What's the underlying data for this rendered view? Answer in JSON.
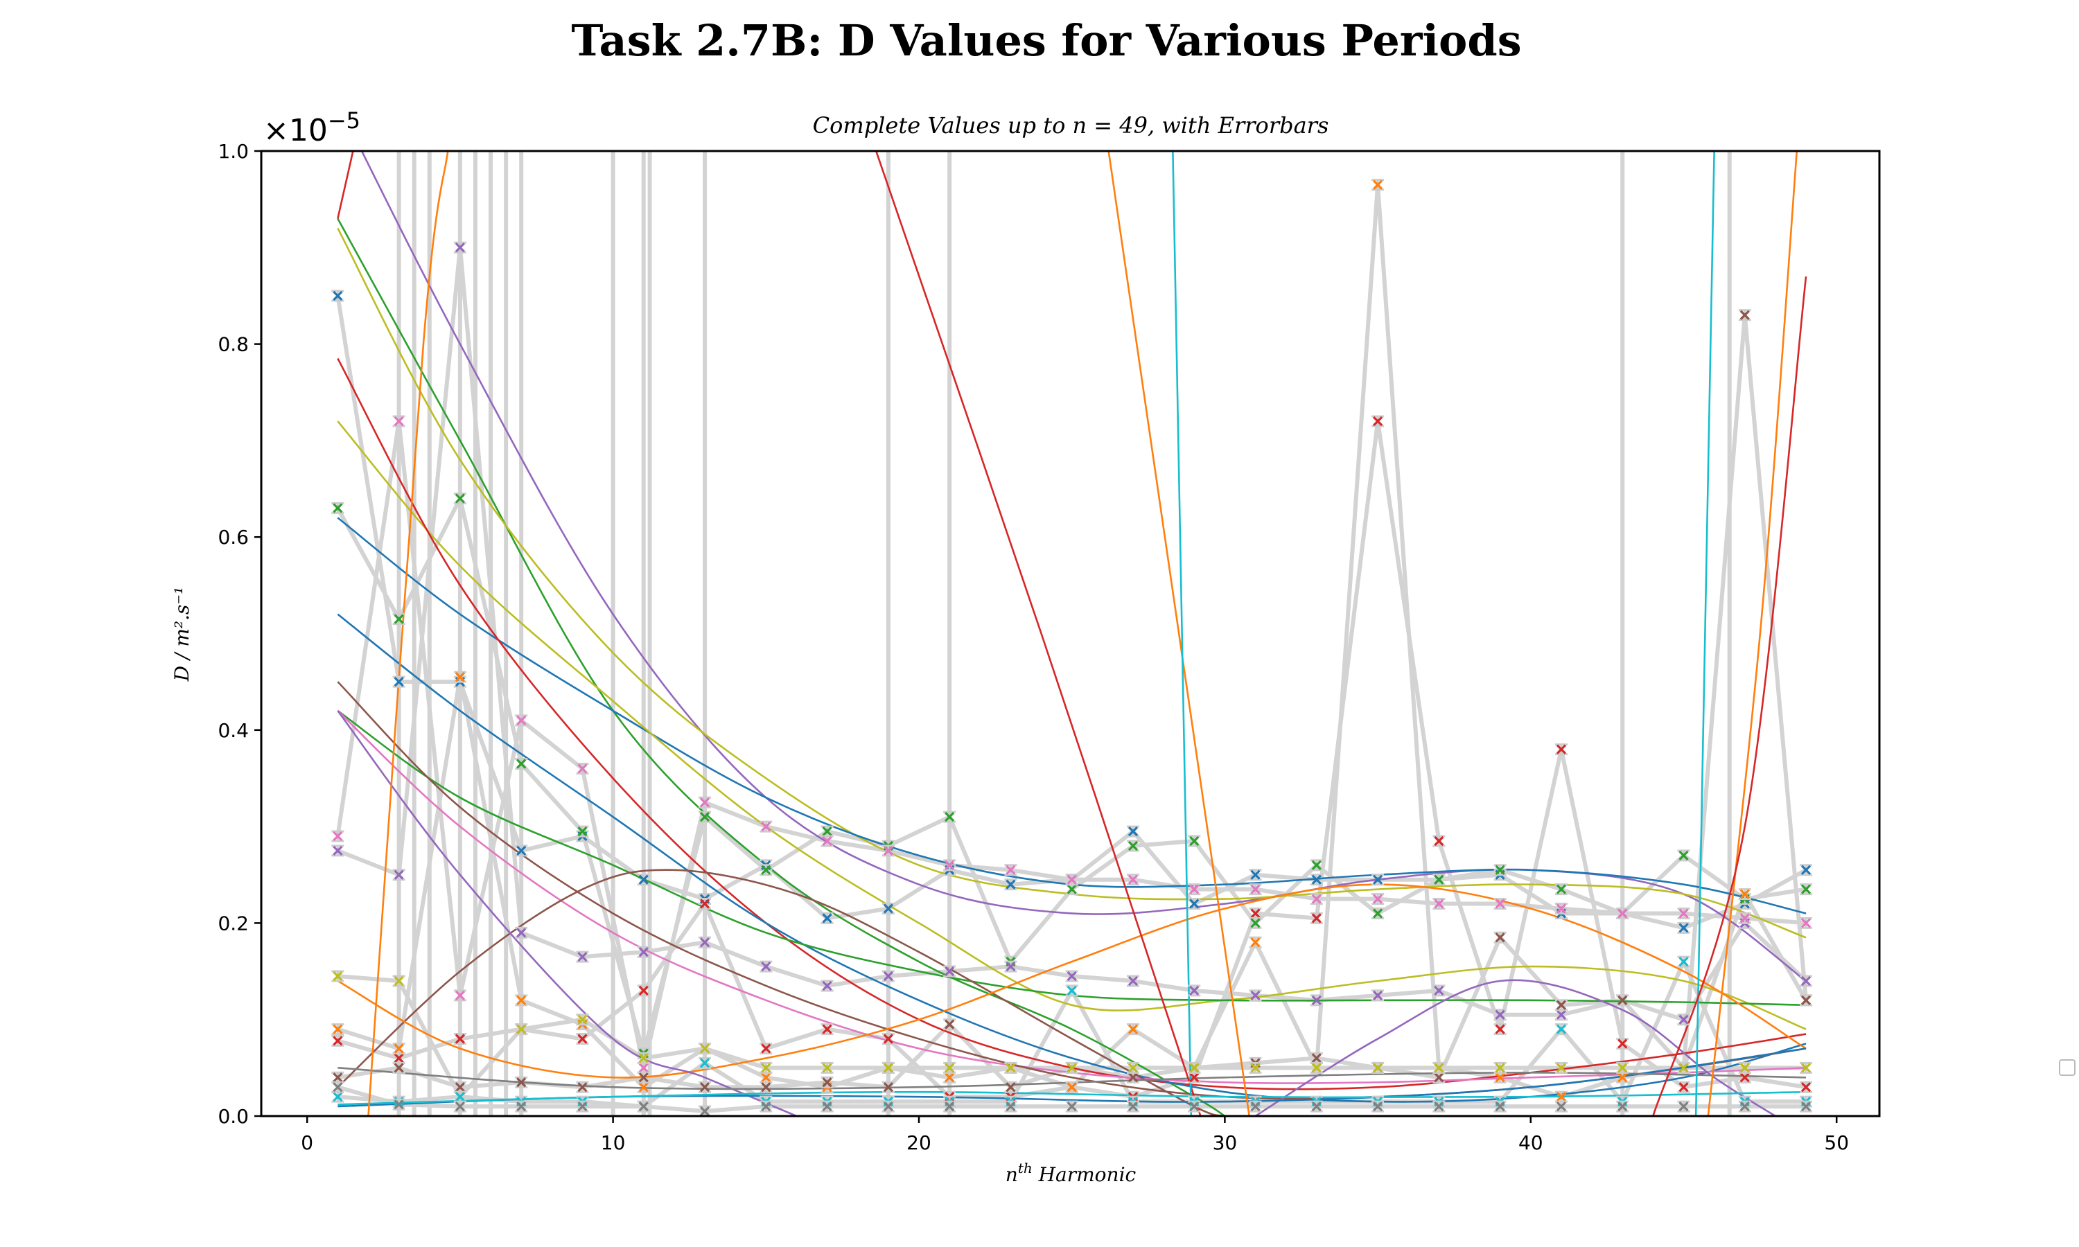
{
  "chart_data": {
    "type": "scatter",
    "title": "Task 2.7B: D Values for Various Periods",
    "subtitle": "Complete Values up to n = 49, with Errorbars",
    "xlabel_base": "n",
    "xlabel_sup": "th",
    "xlabel_rest": " Harmonic",
    "ylabel": "D / m².s⁻¹",
    "y_multiplier_base": "×10",
    "y_multiplier_exp": "−5",
    "xlim": [
      -1.5,
      51.4
    ],
    "ylim": [
      0,
      1.0
    ],
    "x_ticks": [
      0,
      10,
      20,
      30,
      40,
      50
    ],
    "x_tick_labels": [
      "0",
      "10",
      "20",
      "30",
      "40",
      "50"
    ],
    "y_ticks": [
      0,
      0.2,
      0.4,
      0.6,
      0.8,
      1.0
    ],
    "y_tick_labels": [
      "0.0",
      "0.2",
      "0.4",
      "0.6",
      "0.8",
      "1.0"
    ],
    "grid": false,
    "legend": "right (empty)",
    "x": [
      1,
      3,
      5,
      7,
      9,
      11,
      13,
      15,
      17,
      19,
      21,
      23,
      25,
      27,
      29,
      31,
      33,
      35,
      37,
      39,
      41,
      43,
      45,
      47,
      49
    ],
    "palette": [
      "#1f77b4",
      "#ff7f0e",
      "#2ca02c",
      "#d62728",
      "#9467bd",
      "#8c564b",
      "#e377c2",
      "#7f7f7f",
      "#bcbd22",
      "#17becf"
    ],
    "errorbar_color": "#cccccc",
    "connector_color": "#d3d3d3",
    "series": [
      {
        "color": "#1f77b4",
        "values": [
          0.85,
          0.45,
          0.45,
          0.275,
          0.29,
          0.245,
          0.225,
          0.26,
          0.205,
          0.215,
          0.255,
          0.24,
          0.245,
          0.295,
          0.22,
          0.25,
          0.245,
          0.245,
          0.245,
          0.25,
          0.21,
          0.21,
          0.195,
          0.22,
          0.255
        ]
      },
      {
        "color": "#d62728",
        "values": [
          0.078,
          0.06,
          0.08,
          0.09,
          0.08,
          0.13,
          0.22,
          0.07,
          0.09,
          0.08,
          0.02,
          0.02,
          0.03,
          0.02,
          0.04,
          0.21,
          0.205,
          0.72,
          0.285,
          0.09,
          0.38,
          0.075,
          0.03,
          0.04,
          0.03
        ]
      },
      {
        "color": "#2ca02c",
        "values": [
          0.63,
          0.515,
          0.64,
          0.365,
          0.295,
          0.065,
          0.31,
          0.255,
          0.295,
          0.28,
          0.31,
          0.16,
          0.235,
          0.28,
          0.285,
          0.2,
          0.26,
          0.21,
          0.245,
          0.255,
          0.235,
          0.21,
          0.27,
          0.225,
          0.235
        ]
      },
      {
        "color": "#9467bd",
        "values": [
          0.275,
          0.25,
          0.9,
          0.19,
          0.165,
          0.17,
          0.18,
          0.155,
          0.135,
          0.145,
          0.15,
          0.155,
          0.145,
          0.14,
          0.13,
          0.125,
          0.12,
          0.125,
          0.13,
          0.105,
          0.105,
          0.12,
          0.1,
          0.2,
          0.14
        ]
      },
      {
        "color": "#e377c2",
        "values": [
          0.29,
          0.72,
          0.125,
          0.41,
          0.36,
          0.05,
          0.325,
          0.3,
          0.285,
          0.275,
          0.26,
          0.255,
          0.245,
          0.245,
          0.235,
          0.235,
          0.225,
          0.225,
          0.22,
          0.22,
          0.215,
          0.21,
          0.21,
          0.205,
          0.2
        ]
      },
      {
        "color": "#ff7f0e",
        "values": [
          0.09,
          0.07,
          0.455,
          0.12,
          0.095,
          0.03,
          0.07,
          0.04,
          0.03,
          0.05,
          0.04,
          0.05,
          0.03,
          0.09,
          0.05,
          0.18,
          0.05,
          0.965,
          0.05,
          0.04,
          0.02,
          0.04,
          0.05,
          0.23,
          0.12
        ]
      },
      {
        "color": "#8c564b",
        "values": [
          0.04,
          0.05,
          0.03,
          0.035,
          0.03,
          0.04,
          0.03,
          0.03,
          0.035,
          0.03,
          0.095,
          0.03,
          0.05,
          0.04,
          0.05,
          0.055,
          0.06,
          0.05,
          0.04,
          0.185,
          0.115,
          0.12,
          0.05,
          0.83,
          0.12
        ]
      },
      {
        "color": "#bcbd22",
        "values": [
          0.145,
          0.14,
          0.02,
          0.09,
          0.1,
          0.06,
          0.07,
          0.05,
          0.05,
          0.05,
          0.05,
          0.05,
          0.05,
          0.05,
          0.05,
          0.05,
          0.05,
          0.05,
          0.05,
          0.05,
          0.05,
          0.05,
          0.05,
          0.05,
          0.05
        ]
      },
      {
        "color": "#17becf",
        "values": [
          0.02,
          0.015,
          0.02,
          0.015,
          0.015,
          0.01,
          0.055,
          0.015,
          0.015,
          0.015,
          0.015,
          0.015,
          0.13,
          0.015,
          0.015,
          0.015,
          0.015,
          0.015,
          0.015,
          0.015,
          0.09,
          0.015,
          0.16,
          0.015,
          0.015
        ]
      },
      {
        "color": "#7f7f7f",
        "values": [
          0.03,
          0.012,
          0.01,
          0.01,
          0.01,
          0.01,
          0.005,
          0.01,
          0.01,
          0.01,
          0.01,
          0.01,
          0.01,
          0.01,
          0.01,
          0.01,
          0.01,
          0.01,
          0.01,
          0.01,
          0.01,
          0.01,
          0.01,
          0.01,
          0.01
        ]
      }
    ],
    "fit_curves": [
      {
        "color": "#9467bd",
        "points": [
          [
            1,
            1.05
          ],
          [
            5,
            0.8
          ],
          [
            10,
            0.52
          ],
          [
            15,
            0.33
          ],
          [
            20,
            0.24
          ],
          [
            25,
            0.21
          ],
          [
            30,
            0.22
          ],
          [
            35,
            0.245
          ],
          [
            40,
            0.255
          ],
          [
            45,
            0.23
          ],
          [
            49,
            0.14
          ]
        ]
      },
      {
        "color": "#2ca02c",
        "points": [
          [
            1,
            0.93
          ],
          [
            5,
            0.7
          ],
          [
            10,
            0.42
          ],
          [
            15,
            0.26
          ],
          [
            20,
            0.16
          ],
          [
            25,
            0.09
          ],
          [
            29,
            0.02
          ],
          [
            30,
            0.0
          ]
        ]
      },
      {
        "color": "#bcbd22",
        "points": [
          [
            1,
            0.92
          ],
          [
            5,
            0.68
          ],
          [
            10,
            0.48
          ],
          [
            15,
            0.35
          ],
          [
            20,
            0.26
          ],
          [
            25,
            0.23
          ],
          [
            30,
            0.225
          ],
          [
            35,
            0.235
          ],
          [
            40,
            0.24
          ],
          [
            45,
            0.23
          ],
          [
            49,
            0.185
          ]
        ]
      },
      {
        "color": "#1f77b4",
        "points": [
          [
            1,
            0.62
          ],
          [
            5,
            0.52
          ],
          [
            10,
            0.42
          ],
          [
            15,
            0.33
          ],
          [
            20,
            0.27
          ],
          [
            25,
            0.24
          ],
          [
            30,
            0.24
          ],
          [
            35,
            0.25
          ],
          [
            40,
            0.255
          ],
          [
            45,
            0.24
          ],
          [
            49,
            0.21
          ]
        ]
      },
      {
        "color": "#bcbd22",
        "points": [
          [
            1,
            0.72
          ],
          [
            5,
            0.57
          ],
          [
            10,
            0.43
          ],
          [
            15,
            0.3
          ],
          [
            20,
            0.2
          ],
          [
            25,
            0.115
          ],
          [
            30,
            0.12
          ],
          [
            35,
            0.14
          ],
          [
            40,
            0.155
          ],
          [
            45,
            0.14
          ],
          [
            49,
            0.09
          ]
        ]
      },
      {
        "color": "#d62728",
        "points": [
          [
            1,
            0.785
          ],
          [
            5,
            0.55
          ],
          [
            10,
            0.35
          ],
          [
            15,
            0.2
          ],
          [
            20,
            0.1
          ],
          [
            25,
            0.05
          ],
          [
            30,
            0.03
          ],
          [
            35,
            0.03
          ],
          [
            40,
            0.045
          ],
          [
            45,
            0.065
          ],
          [
            49,
            0.085
          ]
        ]
      },
      {
        "color": "#1f77b4",
        "points": [
          [
            1,
            0.52
          ],
          [
            5,
            0.42
          ],
          [
            10,
            0.31
          ],
          [
            15,
            0.2
          ],
          [
            20,
            0.12
          ],
          [
            25,
            0.06
          ],
          [
            30,
            0.025
          ],
          [
            35,
            0.015
          ],
          [
            40,
            0.02
          ],
          [
            45,
            0.04
          ],
          [
            49,
            0.075
          ]
        ]
      },
      {
        "color": "#2ca02c",
        "points": [
          [
            1,
            0.42
          ],
          [
            5,
            0.33
          ],
          [
            10,
            0.26
          ],
          [
            15,
            0.19
          ],
          [
            20,
            0.15
          ],
          [
            25,
            0.125
          ],
          [
            30,
            0.12
          ],
          [
            35,
            0.12
          ],
          [
            40,
            0.12
          ],
          [
            45,
            0.118
          ],
          [
            49,
            0.115
          ]
        ]
      },
      {
        "color": "#e377c2",
        "points": [
          [
            1,
            0.42
          ],
          [
            5,
            0.3
          ],
          [
            10,
            0.19
          ],
          [
            15,
            0.12
          ],
          [
            20,
            0.07
          ],
          [
            25,
            0.045
          ],
          [
            30,
            0.035
          ],
          [
            35,
            0.035
          ],
          [
            40,
            0.04
          ],
          [
            45,
            0.045
          ],
          [
            49,
            0.05
          ]
        ]
      },
      {
        "color": "#8c564b",
        "points": [
          [
            1,
            0.45
          ],
          [
            5,
            0.32
          ],
          [
            10,
            0.21
          ],
          [
            15,
            0.135
          ],
          [
            20,
            0.08
          ],
          [
            25,
            0.04
          ],
          [
            30,
            0.02
          ],
          [
            35,
            0.02
          ],
          [
            40,
            0.03
          ],
          [
            45,
            0.05
          ],
          [
            49,
            0.07
          ]
        ]
      },
      {
        "color": "#8c564b",
        "points": [
          [
            1,
            0.03
          ],
          [
            5,
            0.15
          ],
          [
            9,
            0.235
          ],
          [
            12,
            0.255
          ],
          [
            16,
            0.23
          ],
          [
            20,
            0.17
          ],
          [
            25,
            0.08
          ],
          [
            29,
            0.01
          ],
          [
            30,
            0.0
          ]
        ]
      },
      {
        "color": "#ff7f0e",
        "points": [
          [
            1,
            0.14
          ],
          [
            5,
            0.07
          ],
          [
            10,
            0.04
          ],
          [
            15,
            0.06
          ],
          [
            20,
            0.1
          ],
          [
            25,
            0.16
          ],
          [
            30,
            0.215
          ],
          [
            35,
            0.24
          ],
          [
            40,
            0.215
          ],
          [
            45,
            0.15
          ],
          [
            49,
            0.07
          ]
        ]
      },
      {
        "color": "#9467bd",
        "points": [
          [
            1,
            0.42
          ],
          [
            5,
            0.25
          ],
          [
            10,
            0.08
          ],
          [
            13,
            0.04
          ],
          [
            16,
            0.0
          ]
        ]
      },
      {
        "color": "#9467bd",
        "points": [
          [
            31,
            0.0
          ],
          [
            35,
            0.08
          ],
          [
            39,
            0.14
          ],
          [
            43,
            0.11
          ],
          [
            46,
            0.04
          ],
          [
            48,
            0.0
          ]
        ]
      },
      {
        "color": "#1f77b4",
        "points": [
          [
            1,
            0.01
          ],
          [
            10,
            0.02
          ],
          [
            20,
            0.02
          ],
          [
            30,
            0.015
          ],
          [
            40,
            0.03
          ],
          [
            49,
            0.07
          ]
        ]
      },
      {
        "color": "#17becf",
        "points": [
          [
            1,
            0.012
          ],
          [
            10,
            0.02
          ],
          [
            20,
            0.025
          ],
          [
            30,
            0.02
          ],
          [
            40,
            0.02
          ],
          [
            49,
            0.025
          ]
        ]
      },
      {
        "color": "#7f7f7f",
        "points": [
          [
            1,
            0.05
          ],
          [
            10,
            0.03
          ],
          [
            20,
            0.03
          ],
          [
            30,
            0.04
          ],
          [
            40,
            0.045
          ],
          [
            49,
            0.04
          ]
        ]
      },
      {
        "color": "#d62728",
        "points": [
          [
            18.6,
            1.0
          ],
          [
            24,
            0.5
          ],
          [
            29,
            0.02
          ],
          [
            29.2,
            0.0
          ]
        ]
      },
      {
        "color": "#ff7f0e",
        "points": [
          [
            26.2,
            1.0
          ],
          [
            28.5,
            0.5
          ],
          [
            30.8,
            0.0
          ]
        ]
      },
      {
        "color": "#17becf",
        "points": [
          [
            28.3,
            1.0
          ],
          [
            28.9,
            0.0
          ]
        ]
      },
      {
        "color": "#17becf",
        "points": [
          [
            45.4,
            0.0
          ],
          [
            46.0,
            1.0
          ]
        ]
      },
      {
        "color": "#ff7f0e",
        "points": [
          [
            2.0,
            0.0
          ],
          [
            3.8,
            0.8
          ],
          [
            4.6,
            1.0
          ]
        ]
      },
      {
        "color": "#ff7f0e",
        "points": [
          [
            45.8,
            0.0
          ],
          [
            47.5,
            0.5
          ],
          [
            48.7,
            1.0
          ]
        ]
      },
      {
        "color": "#d62728",
        "points": [
          [
            44.0,
            0.0
          ],
          [
            47,
            0.3
          ],
          [
            49,
            0.87
          ]
        ]
      },
      {
        "color": "#d62728",
        "points": [
          [
            1,
            0.93
          ],
          [
            1.5,
            1.0
          ]
        ]
      }
    ],
    "gray_spikes": [
      {
        "x": 3,
        "top": 1.0
      },
      {
        "x": 3.5,
        "top": 1.0
      },
      {
        "x": 4,
        "top": 1.0
      },
      {
        "x": 5,
        "top": 1.0
      },
      {
        "x": 5.5,
        "top": 1.0
      },
      {
        "x": 6,
        "top": 1.0
      },
      {
        "x": 6.5,
        "top": 1.0
      },
      {
        "x": 7,
        "top": 1.0
      },
      {
        "x": 10,
        "top": 1.0
      },
      {
        "x": 11,
        "top": 1.0
      },
      {
        "x": 11.2,
        "top": 1.0
      },
      {
        "x": 13,
        "top": 1.0
      },
      {
        "x": 19,
        "top": 1.0
      },
      {
        "x": 21,
        "top": 1.0
      },
      {
        "x": 43,
        "top": 1.0
      },
      {
        "x": 46.5,
        "top": 1.0
      }
    ]
  }
}
